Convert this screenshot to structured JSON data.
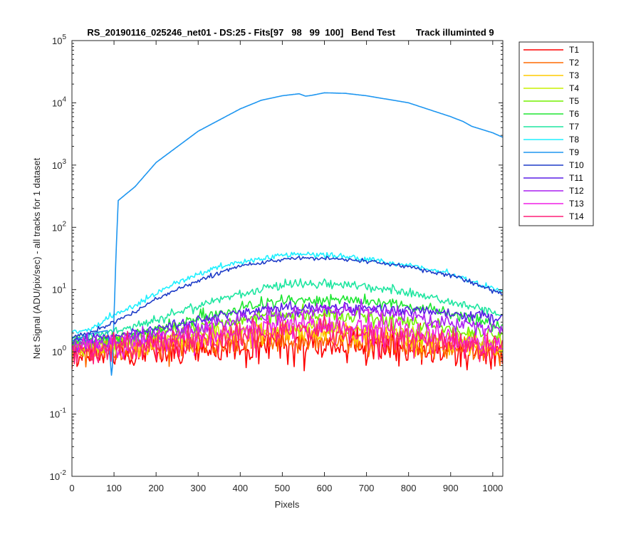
{
  "chart_data": {
    "type": "line",
    "title": "RS_20190116_025246_net01 - DS:25 - Fits[97   98   99  100]   Bend Test        Track illuminted 9",
    "xlabel": "Pixels",
    "ylabel": "Net Signal (ADU/pix/sec) - all tracks for 1 dataset",
    "xlim": [
      0,
      1024
    ],
    "ylim": [
      0.01,
      100000
    ],
    "yscale": "log",
    "grid": false,
    "legend_position": "outside-top-right",
    "x_ticks": [
      0,
      100,
      200,
      300,
      400,
      500,
      600,
      700,
      800,
      900,
      1000
    ],
    "x_tick_labels": [
      "0",
      "100",
      "200",
      "300",
      "400",
      "500",
      "600",
      "700",
      "800",
      "900",
      "1000"
    ],
    "y_ticks": [
      0.01,
      0.1,
      1,
      10,
      100,
      1000,
      10000,
      100000
    ],
    "y_tick_labels": [
      {
        "base": "10",
        "exp": "-2"
      },
      {
        "base": "10",
        "exp": "-1"
      },
      {
        "base": "10",
        "exp": "0"
      },
      {
        "base": "10",
        "exp": "1"
      },
      {
        "base": "10",
        "exp": "2"
      },
      {
        "base": "10",
        "exp": "3"
      },
      {
        "base": "10",
        "exp": "4"
      },
      {
        "base": "10",
        "exp": "5"
      }
    ],
    "series": [
      {
        "name": "T1",
        "color": "#ff0000",
        "noise": 0.22,
        "x": [
          0,
          100,
          200,
          300,
          400,
          500,
          600,
          700,
          800,
          900,
          1024
        ],
        "y": [
          0.9,
          0.95,
          1.0,
          1.1,
          1.2,
          1.3,
          1.3,
          1.2,
          1.1,
          1.0,
          0.9
        ]
      },
      {
        "name": "T2",
        "color": "#ff6a00",
        "noise": 0.18,
        "x": [
          0,
          100,
          200,
          300,
          400,
          500,
          600,
          700,
          800,
          900,
          1024
        ],
        "y": [
          1.0,
          1.05,
          1.15,
          1.3,
          1.45,
          1.55,
          1.55,
          1.45,
          1.3,
          1.15,
          1.0
        ]
      },
      {
        "name": "T3",
        "color": "#ffcc00",
        "noise": 0.14,
        "x": [
          0,
          100,
          200,
          300,
          400,
          500,
          600,
          700,
          800,
          900,
          1024
        ],
        "y": [
          1.1,
          1.2,
          1.35,
          1.55,
          1.8,
          2.0,
          2.0,
          1.85,
          1.6,
          1.35,
          1.1
        ]
      },
      {
        "name": "T4",
        "color": "#c8f000",
        "noise": 0.12,
        "x": [
          0,
          100,
          200,
          300,
          400,
          500,
          600,
          700,
          800,
          900,
          1024
        ],
        "y": [
          1.2,
          1.35,
          1.6,
          1.9,
          2.2,
          2.5,
          2.5,
          2.3,
          2.0,
          1.7,
          1.3
        ]
      },
      {
        "name": "T5",
        "color": "#73f000",
        "noise": 0.1,
        "x": [
          0,
          100,
          200,
          300,
          400,
          500,
          600,
          700,
          800,
          900,
          1024
        ],
        "y": [
          1.3,
          1.5,
          1.9,
          2.5,
          3.2,
          3.8,
          3.9,
          3.6,
          3.0,
          2.3,
          1.6
        ]
      },
      {
        "name": "T6",
        "color": "#1ee632",
        "noise": 0.08,
        "x": [
          0,
          100,
          200,
          300,
          400,
          500,
          600,
          700,
          800,
          900,
          1024
        ],
        "y": [
          1.4,
          1.7,
          2.3,
          3.5,
          5.0,
          6.5,
          7.0,
          6.5,
          5.5,
          4.0,
          2.6
        ]
      },
      {
        "name": "T7",
        "color": "#1ee6a0",
        "noise": 0.06,
        "x": [
          0,
          100,
          200,
          300,
          400,
          500,
          600,
          700,
          800,
          900,
          1024
        ],
        "y": [
          1.6,
          2.1,
          3.2,
          5.5,
          8.5,
          12.0,
          12.5,
          11.0,
          9.0,
          6.5,
          4.0
        ]
      },
      {
        "name": "T8",
        "color": "#1ef0ff",
        "noise": 0.04,
        "x": [
          0,
          50,
          100,
          150,
          200,
          300,
          400,
          500,
          550,
          600,
          700,
          800,
          900,
          1024
        ],
        "y": [
          2.0,
          2.4,
          4.0,
          5.5,
          9.0,
          18.0,
          28.0,
          36.0,
          37.5,
          36.0,
          31.0,
          25.0,
          18.0,
          9.0
        ]
      },
      {
        "name": "T9",
        "color": "#1e96f0",
        "noise": 0.0,
        "x": [
          0,
          50,
          85,
          95,
          105,
          110,
          150,
          200,
          300,
          400,
          450,
          500,
          540,
          555,
          570,
          600,
          650,
          700,
          800,
          900,
          930,
          950,
          1000,
          1024
        ],
        "y": [
          1.5,
          2.0,
          2.2,
          0.35,
          40,
          270,
          450,
          1100,
          3500,
          8000,
          11000,
          13000,
          14000,
          12800,
          13200,
          14500,
          14200,
          13000,
          10000,
          6000,
          5000,
          4200,
          3300,
          2800
        ]
      },
      {
        "name": "T10",
        "color": "#1e3cc8",
        "noise": 0.03,
        "x": [
          0,
          50,
          100,
          150,
          200,
          300,
          400,
          500,
          550,
          600,
          700,
          800,
          900,
          1024
        ],
        "y": [
          1.7,
          2.1,
          3.0,
          4.5,
          7.0,
          14.0,
          24.0,
          31.0,
          32.0,
          31.5,
          29.0,
          23.0,
          17.0,
          8.5
        ]
      },
      {
        "name": "T11",
        "color": "#5a1ee6",
        "noise": 0.07,
        "x": [
          0,
          100,
          200,
          300,
          400,
          500,
          600,
          700,
          800,
          900,
          1024
        ],
        "y": [
          1.5,
          1.8,
          2.4,
          3.3,
          4.3,
          5.0,
          5.2,
          5.0,
          4.6,
          4.2,
          3.5
        ]
      },
      {
        "name": "T12",
        "color": "#aa1ef0",
        "noise": 0.1,
        "x": [
          0,
          100,
          200,
          300,
          400,
          500,
          600,
          700,
          800,
          900,
          1024
        ],
        "y": [
          1.3,
          1.5,
          1.9,
          2.4,
          3.2,
          4.2,
          4.8,
          4.5,
          3.8,
          3.0,
          2.3
        ]
      },
      {
        "name": "T13",
        "color": "#f01ee6",
        "noise": 0.16,
        "x": [
          0,
          100,
          200,
          300,
          400,
          500,
          600,
          700,
          800,
          900,
          1024
        ],
        "y": [
          1.1,
          1.2,
          1.4,
          1.7,
          2.2,
          2.7,
          2.8,
          2.5,
          2.0,
          1.6,
          1.2
        ]
      },
      {
        "name": "T14",
        "color": "#ff1e78",
        "noise": 0.2,
        "x": [
          0,
          100,
          200,
          300,
          400,
          500,
          600,
          700,
          800,
          900,
          1024
        ],
        "y": [
          1.0,
          1.1,
          1.3,
          1.5,
          1.8,
          2.1,
          2.1,
          1.9,
          1.6,
          1.3,
          1.1
        ]
      }
    ]
  }
}
